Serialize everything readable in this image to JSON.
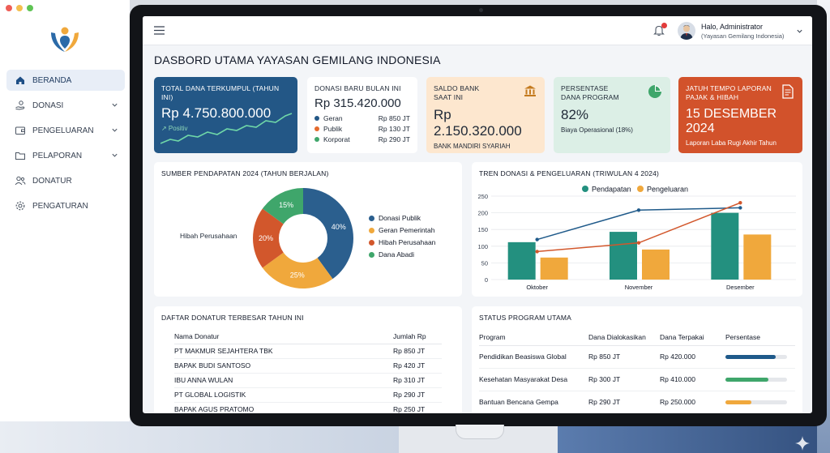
{
  "sidebar": {
    "items": [
      {
        "label": "BERANDA",
        "icon": "home-icon",
        "active": true,
        "has_chevron": false
      },
      {
        "label": "DONASI",
        "icon": "hand-money-icon",
        "active": false,
        "has_chevron": true
      },
      {
        "label": "PENGELUARAN",
        "icon": "wallet-icon",
        "active": false,
        "has_chevron": true
      },
      {
        "label": "PELAPORAN",
        "icon": "folder-icon",
        "active": false,
        "has_chevron": true
      },
      {
        "label": "DONATUR",
        "icon": "users-icon",
        "active": false,
        "has_chevron": false
      },
      {
        "label": "PENGATURAN",
        "icon": "gear-icon",
        "active": false,
        "has_chevron": false
      }
    ]
  },
  "header": {
    "greeting": "Halo, Administrator",
    "org": "(Yayasan Gemilang Indonesia)"
  },
  "page_title": "DASBORD UTAMA YAYASAN GEMILANG INDONESIA",
  "kpi": {
    "total": {
      "label": "TOTAL DANA TERKUMPUL (TAHUN INI)",
      "value": "Rp 4.750.800.000",
      "trend": "↗ Positiv"
    },
    "new_donations": {
      "label": "DONASI BARU BULAN INI",
      "value": "Rp 315.420.000",
      "rows": [
        {
          "name": "Geran",
          "amount": "Rp 850 JT",
          "color": "#235786"
        },
        {
          "name": "Publik",
          "amount": "Rp 130 JT",
          "color": "#e46a2e"
        },
        {
          "name": "Korporat",
          "amount": "Rp 290 JT",
          "color": "#3fa66b"
        }
      ]
    },
    "bank": {
      "label_line1": "SALDO BANK",
      "label_line2": "SAAT INI",
      "value": "Rp 2.150.320.000",
      "sub": "BANK MANDIRI SYARIAH"
    },
    "program": {
      "label_line1": "PERSENTASE",
      "label_line2": "DANA PROGRAM",
      "value": "82%",
      "sub": "Biaya Operasional (18%)"
    },
    "tax": {
      "label_line1": "JATUH TEMPO LAPORAN",
      "label_line2": "PAJAK & HIBAH",
      "value": "15 DESEMBER 2024",
      "sub": "Laporan Laba Rugi Akhir Tahun"
    }
  },
  "income_panel": {
    "title": "SUMBER PENDAPATAN 2024 (TAHUN BERJALAN)",
    "callout": "Hibah Perusahaan"
  },
  "trend_panel": {
    "title": "TREN DONASI & PENGELUARAN (TRIWULAN 4 2024)"
  },
  "chart_data": [
    {
      "type": "pie",
      "title": "SUMBER PENDAPATAN 2024 (TAHUN BERJALAN)",
      "categories": [
        "Donasi Publik",
        "Geran Pemerintah",
        "Hibah Perusahaan",
        "Dana Abadi"
      ],
      "values": [
        40,
        25,
        20,
        15
      ],
      "labels": [
        "40%",
        "25%",
        "20%",
        "15%"
      ],
      "colors": [
        "#2b5f8e",
        "#f0a83c",
        "#d2572c",
        "#3fa66b"
      ],
      "legend_position": "right"
    },
    {
      "type": "bar",
      "title": "TREN DONASI & PENGELUARAN (TRIWULAN 4 2024)",
      "categories": [
        "Oktober",
        "November",
        "Desember"
      ],
      "series": [
        {
          "name": "Pendapatan",
          "values": [
            112,
            143,
            200
          ],
          "color": "#23907f"
        },
        {
          "name": "Pengeluaran",
          "values": [
            66,
            90,
            135
          ],
          "color": "#f0a83c"
        }
      ],
      "lines": [
        {
          "series": "Pendapatan",
          "values": [
            120,
            208,
            215
          ],
          "color": "#1f5a8a"
        },
        {
          "series": "Pengeluaran",
          "values": [
            84,
            110,
            230
          ],
          "color": "#d2572c"
        }
      ],
      "yticks": [
        0,
        50,
        100,
        150,
        200,
        250
      ],
      "ylim": [
        0,
        250
      ],
      "grid": true,
      "legend_position": "top"
    }
  ],
  "donors": {
    "title": "DAFTAR DONATUR TERBESAR TAHUN INI",
    "col_name": "Nama Donatur",
    "col_amount": "Jumlah Rp",
    "rows": [
      {
        "name": "PT MAKMUR SEJAHTERA TBK",
        "amount": "Rp 850 JT"
      },
      {
        "name": "BAPAK BUDI SANTOSO",
        "amount": "Rp 420 JT"
      },
      {
        "name": "IBU ANNA WULAN",
        "amount": "Rp 310 JT"
      },
      {
        "name": "PT GLOBAL LOGISTIK",
        "amount": "Rp 290 JT"
      },
      {
        "name": "BAPAK AGUS PRATOMO",
        "amount": "Rp 250 JT"
      }
    ]
  },
  "programs": {
    "title": "STATUS PROGRAM UTAMA",
    "col_program": "Program",
    "col_allocated": "Dana Dialokasikan",
    "col_used": "Dana Terpakai",
    "col_percent": "Persentase",
    "rows": [
      {
        "name": "Pendidikan Beasiswa Global",
        "allocated": "Rp 850 JT",
        "used": "Rp 420.000",
        "progress": 0.82,
        "color": "#1f5a8a"
      },
      {
        "name": "Kesehatan Masyarakat Desa",
        "allocated": "Rp 300 JT",
        "used": "Rp 410.000",
        "progress": 0.7,
        "color": "#3fa66b"
      },
      {
        "name": "Bantuan Bencana Gempa",
        "allocated": "Rp 290 JT",
        "used": "Rp 250.000",
        "progress": 0.42,
        "color": "#f0a83c"
      }
    ]
  }
}
